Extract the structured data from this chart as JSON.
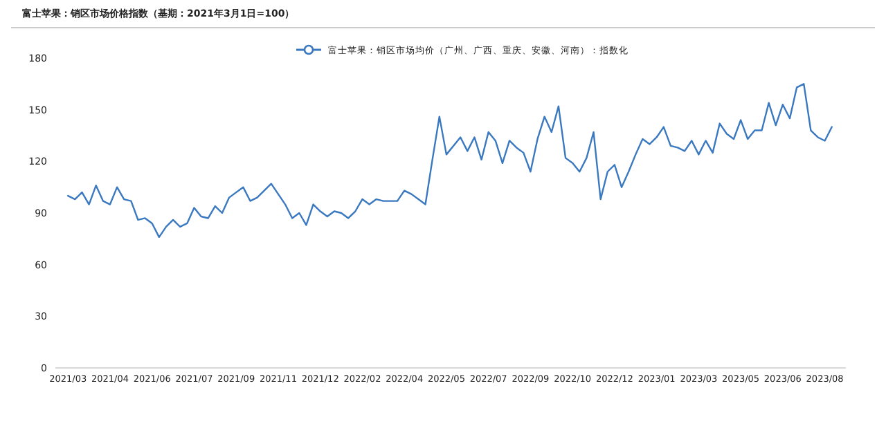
{
  "chart_data": {
    "type": "line",
    "title": "富士苹果：销区市场价格指数（基期：2021年3月1日=100）",
    "categories": [
      "2021/03",
      null,
      null,
      null,
      null,
      null,
      "2021/04",
      null,
      null,
      null,
      null,
      null,
      "2021/06",
      null,
      null,
      null,
      null,
      null,
      "2021/07",
      null,
      null,
      null,
      null,
      null,
      "2021/09",
      null,
      null,
      null,
      null,
      null,
      "2021/11",
      null,
      null,
      null,
      null,
      null,
      "2021/12",
      null,
      null,
      null,
      null,
      null,
      "2022/02",
      null,
      null,
      null,
      null,
      null,
      "2022/04",
      null,
      null,
      null,
      null,
      null,
      "2022/05",
      null,
      null,
      null,
      null,
      null,
      "2022/07",
      null,
      null,
      null,
      null,
      null,
      "2022/09",
      null,
      null,
      null,
      null,
      null,
      "2022/10",
      null,
      null,
      null,
      null,
      null,
      "2022/12",
      null,
      null,
      null,
      null,
      null,
      "2023/01",
      null,
      null,
      null,
      null,
      null,
      "2023/03",
      null,
      null,
      null,
      null,
      null,
      "2023/05",
      null,
      null,
      null,
      null,
      null,
      "2023/06",
      null,
      null,
      null,
      null,
      null,
      "2023/08",
      null
    ],
    "series": [
      {
        "name": "富士苹果：销区市场均价（广州、广西、重庆、安徽、河南）：指数化",
        "color": "#3a78c0",
        "values": [
          100,
          98,
          102,
          95,
          106,
          97,
          95,
          105,
          98,
          97,
          86,
          87,
          84,
          76,
          82,
          86,
          82,
          84,
          93,
          88,
          87,
          94,
          90,
          99,
          102,
          105,
          97,
          99,
          103,
          107,
          101,
          95,
          87,
          90,
          83,
          95,
          91,
          88,
          91,
          90,
          87,
          91,
          98,
          95,
          98,
          97,
          97,
          97,
          103,
          101,
          98,
          95,
          121,
          146,
          124,
          129,
          134,
          126,
          134,
          121,
          137,
          132,
          119,
          132,
          128,
          125,
          114,
          133,
          146,
          137,
          152,
          122,
          119,
          114,
          122,
          137,
          98,
          114,
          118,
          105,
          114,
          124,
          133,
          130,
          134,
          140,
          129,
          128,
          126,
          132,
          124,
          132,
          125,
          142,
          136,
          133,
          144,
          133,
          138,
          138,
          154,
          141,
          153,
          145,
          163,
          165,
          138,
          134,
          132,
          140
        ]
      }
    ],
    "ylim": [
      0,
      180
    ],
    "yticks": [
      0,
      30,
      60,
      90,
      120,
      150,
      180
    ],
    "legend": "top"
  }
}
